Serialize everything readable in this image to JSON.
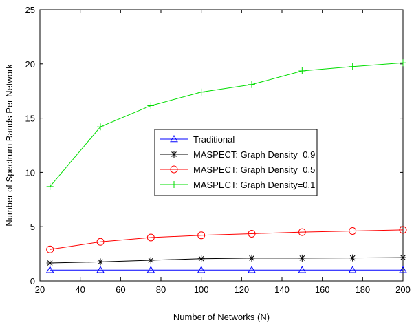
{
  "chart_data": {
    "type": "line",
    "title": "",
    "xlabel": "Number of Networks (N)",
    "ylabel": "Number of Spectrum Bands Per Network",
    "xlim": [
      20,
      200
    ],
    "ylim": [
      0,
      25
    ],
    "xticks": [
      20,
      40,
      60,
      80,
      100,
      120,
      140,
      160,
      180,
      200
    ],
    "yticks": [
      0,
      5,
      10,
      15,
      20,
      25
    ],
    "grid": false,
    "legend_position": "center-right",
    "x": [
      25,
      50,
      75,
      100,
      125,
      150,
      175,
      200
    ],
    "series": [
      {
        "name": "Traditional",
        "color": "#0000ff",
        "marker": "triangle",
        "values": [
          1,
          1,
          1,
          1,
          1,
          1,
          1,
          1
        ]
      },
      {
        "name": "MASPECT: Graph Density=0.9",
        "color": "#000000",
        "marker": "asterisk",
        "values": [
          1.65,
          1.75,
          1.9,
          2.05,
          2.1,
          2.1,
          2.12,
          2.15
        ]
      },
      {
        "name": "MASPECT: Graph Density=0.5",
        "color": "#ff0000",
        "marker": "circle",
        "values": [
          2.9,
          3.6,
          4.0,
          4.2,
          4.35,
          4.5,
          4.6,
          4.7
        ]
      },
      {
        "name": "MASPECT: Graph Density=0.1",
        "color": "#00dd00",
        "marker": "plus",
        "values": [
          8.7,
          14.2,
          16.15,
          17.4,
          18.1,
          19.35,
          19.75,
          20.1
        ]
      }
    ]
  }
}
